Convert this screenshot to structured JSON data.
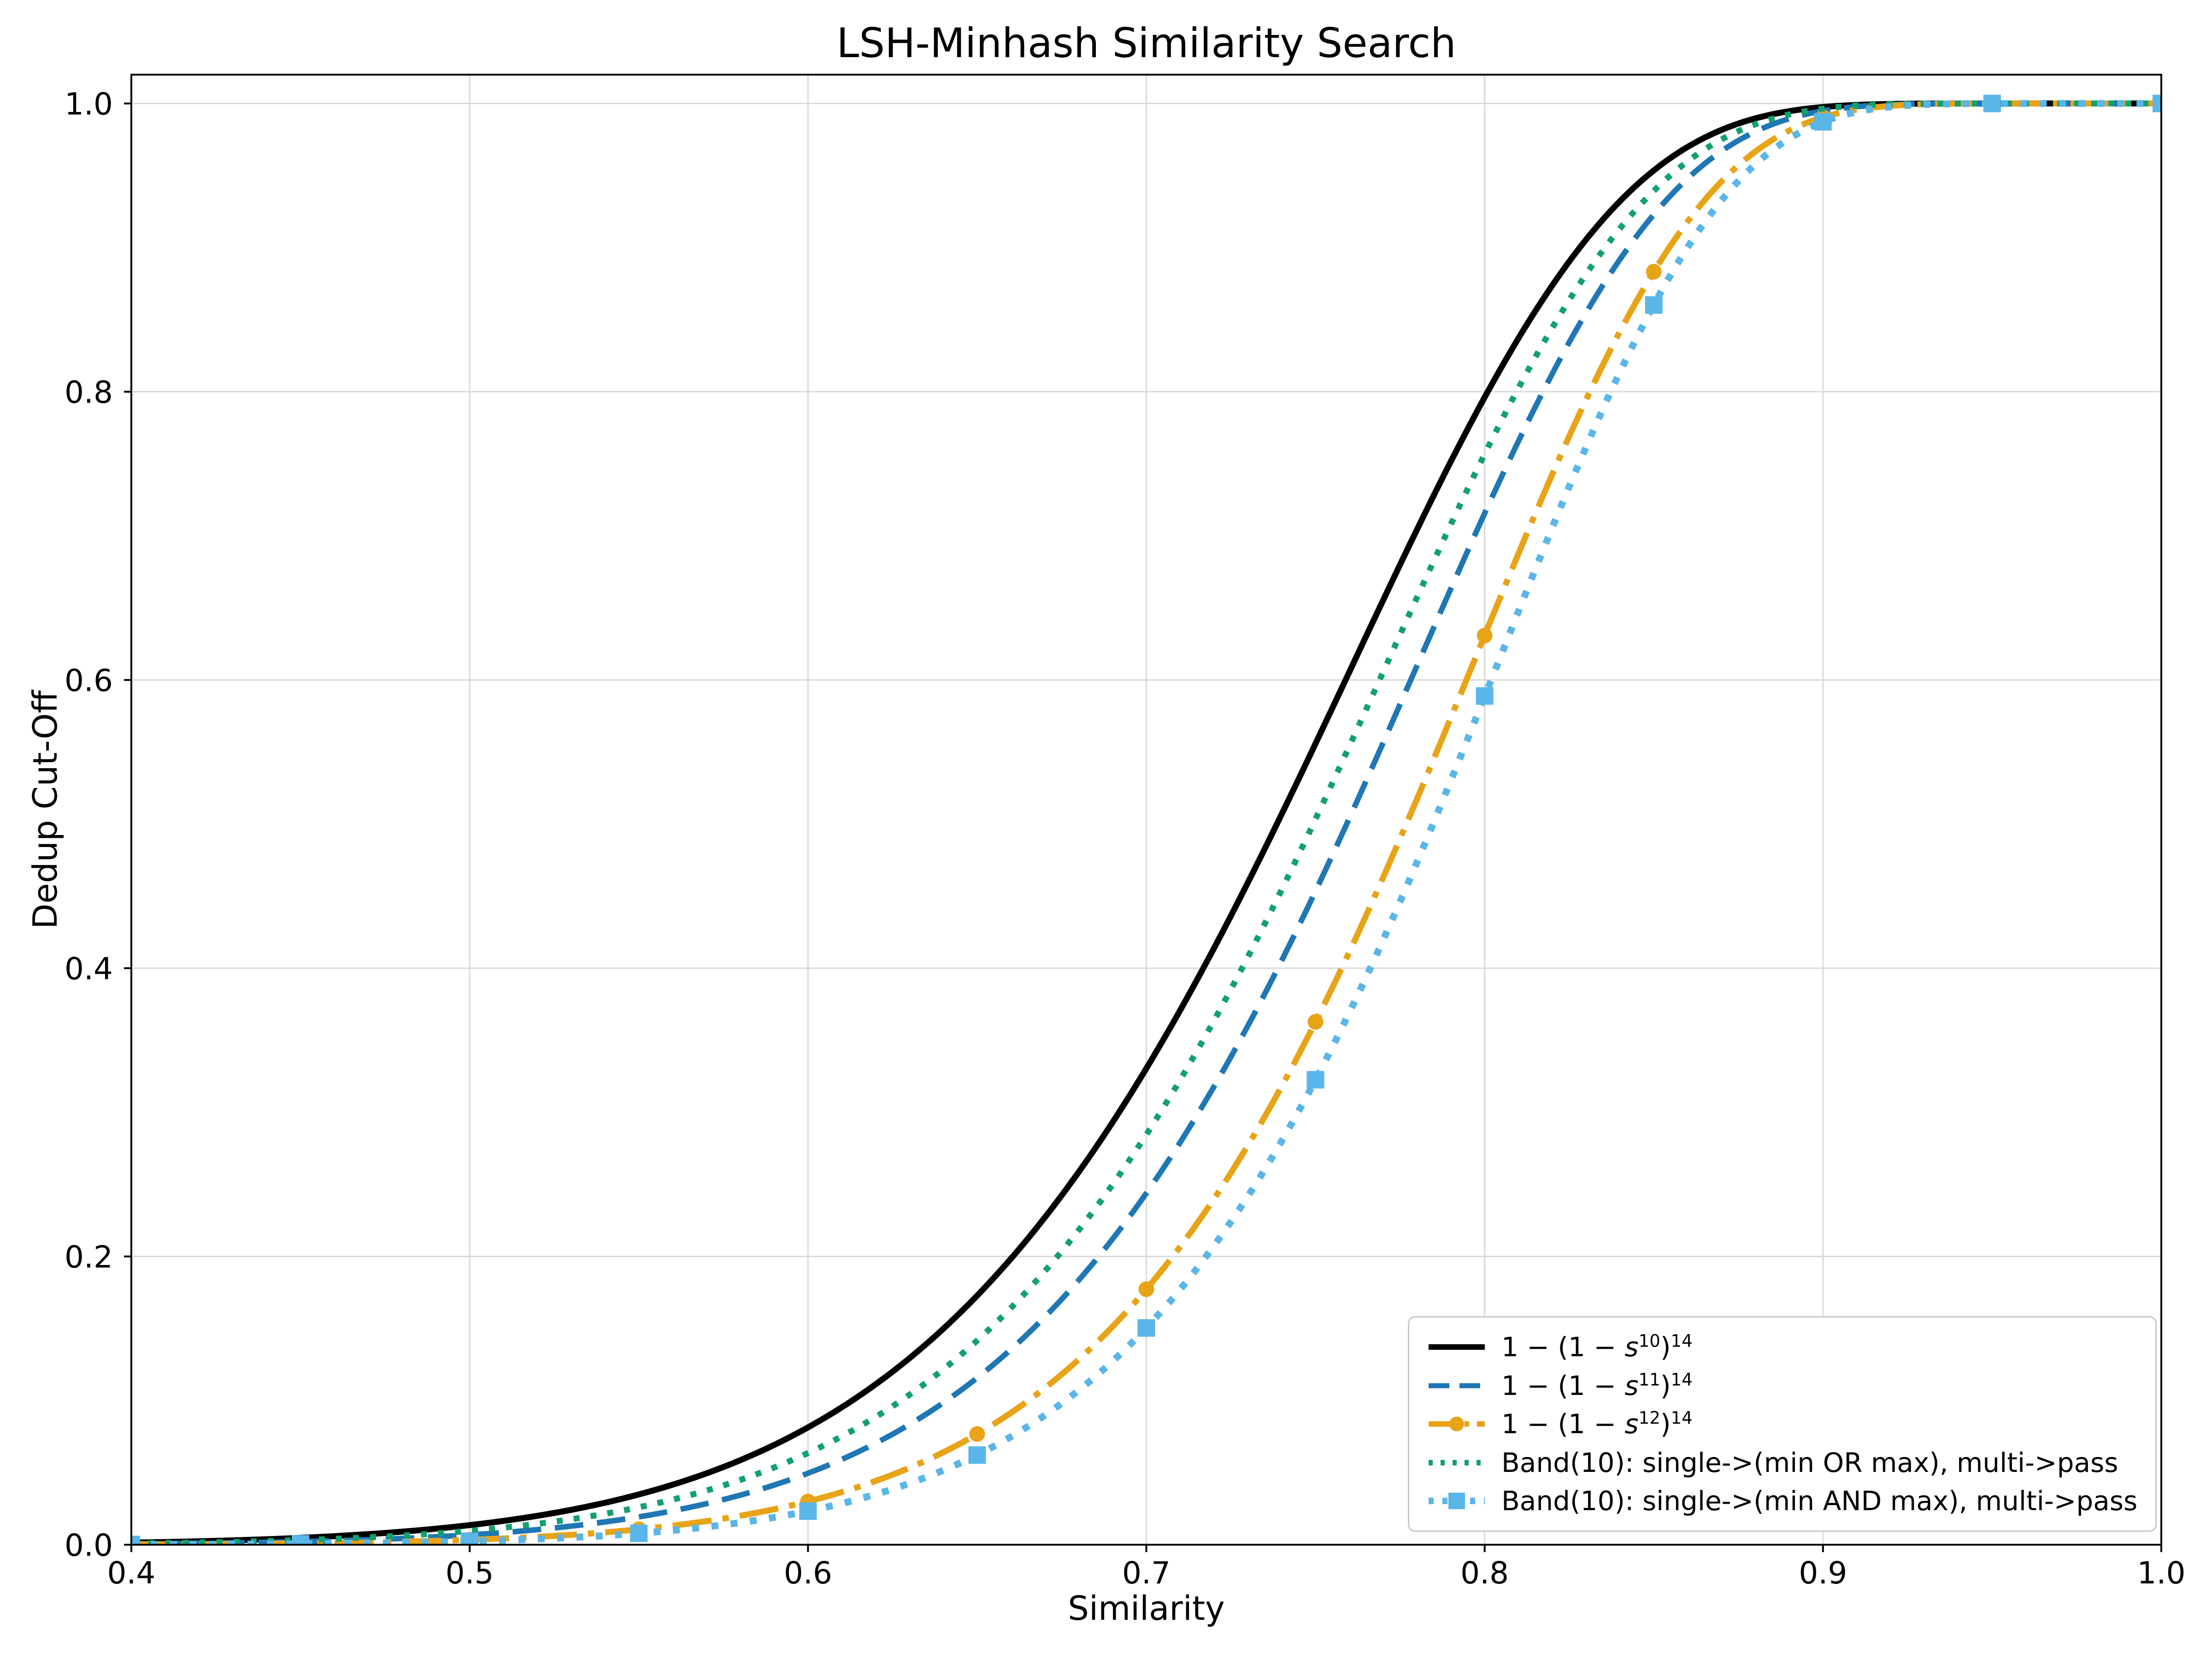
{
  "figure": {
    "title": "LSH-Minhash Similarity Search",
    "xlabel": "Similarity",
    "ylabel": "Dedup Cut-Off"
  },
  "chart_data": {
    "type": "line",
    "title": "LSH-Minhash Similarity Search",
    "xlabel": "Similarity",
    "ylabel": "Dedup Cut-Off",
    "xlim": [
      0.4,
      1.0
    ],
    "ylim": [
      0.0,
      1.02
    ],
    "x_ticks": [
      "0.4",
      "0.5",
      "0.6",
      "0.7",
      "0.8",
      "0.9",
      "1.0"
    ],
    "x_tick_values": [
      0.4,
      0.5,
      0.6,
      0.7,
      0.8,
      0.9,
      1.0
    ],
    "y_ticks": [
      "0.0",
      "0.2",
      "0.4",
      "0.6",
      "0.8",
      "1.0"
    ],
    "y_tick_values": [
      0.0,
      0.2,
      0.4,
      0.6,
      0.8,
      1.0
    ],
    "grid": true,
    "grid_color": "#d9d9d9",
    "legend_position": "lower right",
    "series": [
      {
        "id": "s10",
        "name": "1 − (1 − s^10)^14",
        "color": "#000000",
        "linestyle": "solid",
        "linewidth": 13,
        "dash": null,
        "marker": null,
        "marker_size": 0,
        "formula": {
          "r": 10,
          "b": 14
        },
        "points": [
          [
            0.4,
            0.0015
          ],
          [
            0.45,
            0.0048
          ],
          [
            0.5,
            0.0136
          ],
          [
            0.55,
            0.0349
          ],
          [
            0.6,
            0.0813
          ],
          [
            0.65,
            0.1729
          ],
          [
            0.7,
            0.3305
          ],
          [
            0.75,
            0.5558
          ],
          [
            0.8,
            0.7961
          ],
          [
            0.85,
            0.9536
          ],
          [
            0.9,
            0.9975
          ],
          [
            0.95,
            1.0
          ],
          [
            1.0,
            1.0
          ]
        ]
      },
      {
        "id": "s11",
        "name": "1 − (1 − s^11)^14",
        "color": "#1f77b4",
        "linestyle": "dashed",
        "linewidth": 12,
        "dash": [
          62,
          30
        ],
        "marker": null,
        "marker_size": 0,
        "formula": {
          "r": 11,
          "b": 14
        },
        "points": [
          [
            0.4,
            0.0006
          ],
          [
            0.45,
            0.0021
          ],
          [
            0.5,
            0.0068
          ],
          [
            0.55,
            0.0193
          ],
          [
            0.6,
            0.0496
          ],
          [
            0.65,
            0.1158
          ],
          [
            0.7,
            0.2439
          ],
          [
            0.75,
            0.4535
          ],
          [
            0.8,
            0.7157
          ],
          [
            0.85,
            0.923
          ],
          [
            0.9,
            0.9949
          ],
          [
            0.95,
            1.0
          ],
          [
            1.0,
            1.0
          ]
        ]
      },
      {
        "id": "s12",
        "name": "1 − (1 − s^12)^14",
        "color": "#e8a317",
        "linestyle": "dashdot",
        "linewidth": 13,
        "dash": [
          85,
          24,
          14,
          24
        ],
        "marker": "circle",
        "marker_size": 17,
        "formula": {
          "r": 12,
          "b": 14
        },
        "points": [
          [
            0.4,
            0.0002
          ],
          [
            0.45,
            0.001
          ],
          [
            0.5,
            0.0034
          ],
          [
            0.55,
            0.0107
          ],
          [
            0.6,
            0.03
          ],
          [
            0.65,
            0.0768
          ],
          [
            0.7,
            0.1773
          ],
          [
            0.75,
            0.3628
          ],
          [
            0.8,
            0.6308
          ],
          [
            0.85,
            0.8833
          ],
          [
            0.9,
            0.9904
          ],
          [
            0.95,
            1.0
          ],
          [
            1.0,
            1.0
          ]
        ]
      },
      {
        "id": "band-or",
        "name": "Band(10): single->(min OR max), multi->pass",
        "color": "#12a06e",
        "linestyle": "dotted",
        "linewidth": 13,
        "dash": [
          13,
          24
        ],
        "marker": null,
        "marker_size": 0,
        "formula": {
          "r": 10.5,
          "b": 14
        },
        "points": [
          [
            0.4,
            0.0009
          ],
          [
            0.45,
            0.0032
          ],
          [
            0.5,
            0.0096
          ],
          [
            0.55,
            0.0259
          ],
          [
            0.6,
            0.0635
          ],
          [
            0.65,
            0.1416
          ],
          [
            0.7,
            0.2846
          ],
          [
            0.75,
            0.5034
          ],
          [
            0.8,
            0.7568
          ],
          [
            0.85,
            0.9394
          ],
          [
            0.9,
            0.9964
          ],
          [
            0.95,
            1.0
          ],
          [
            1.0,
            1.0
          ]
        ]
      },
      {
        "id": "band-and",
        "name": "Band(10): single->(min AND max), multi->pass",
        "color": "#5ab6e8",
        "linestyle": "dotted",
        "linewidth": 15,
        "dash": [
          15,
          27
        ],
        "marker": "square",
        "marker_size": 19,
        "formula": {
          "r": 12.5,
          "b": 14
        },
        "points": [
          [
            0.4,
            0.0002
          ],
          [
            0.45,
            0.0006
          ],
          [
            0.5,
            0.0024
          ],
          [
            0.55,
            0.0079
          ],
          [
            0.6,
            0.0233
          ],
          [
            0.65,
            0.0622
          ],
          [
            0.7,
            0.1504
          ],
          [
            0.75,
            0.3226
          ],
          [
            0.8,
            0.5889
          ],
          [
            0.85,
            0.8602
          ],
          [
            0.9,
            0.9873
          ],
          [
            0.95,
            1.0
          ],
          [
            1.0,
            1.0
          ]
        ]
      }
    ]
  },
  "legend": {
    "entries": [
      {
        "pre": "1 − (1 − ",
        "var": "s",
        "exp_inner": "10",
        "close": ")",
        "exp_outer": "14"
      },
      {
        "pre": "1 − (1 − ",
        "var": "s",
        "exp_inner": "11",
        "close": ")",
        "exp_outer": "14"
      },
      {
        "pre": "1 − (1 − ",
        "var": "s",
        "exp_inner": "12",
        "close": ")",
        "exp_outer": "14"
      },
      {
        "label": "Band(10): single->(min OR max), multi->pass"
      },
      {
        "label": "Band(10): single->(min AND max), multi->pass"
      }
    ]
  }
}
